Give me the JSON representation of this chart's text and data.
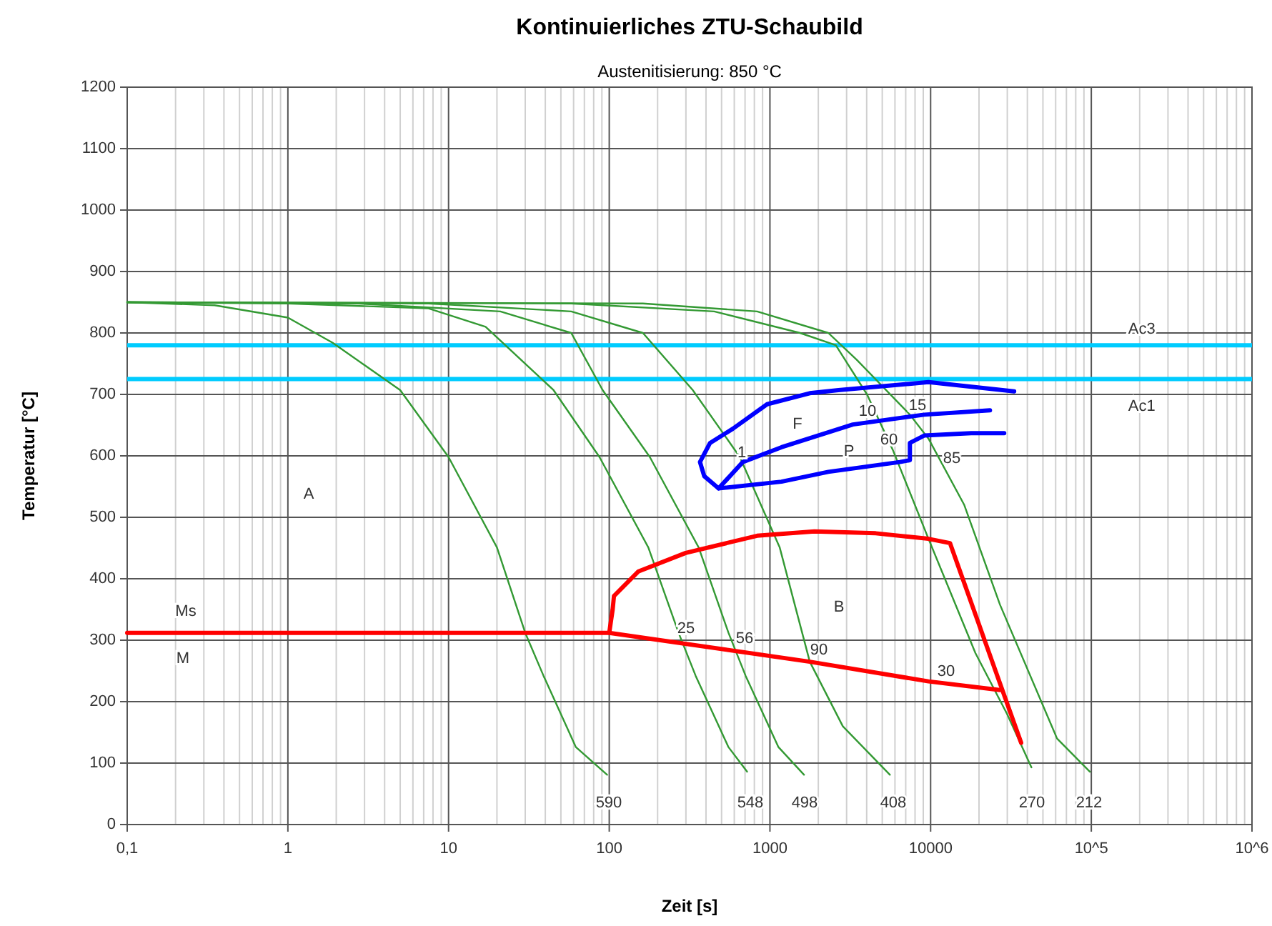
{
  "chart_data": {
    "type": "line",
    "title": "Kontinuierliches ZTU-Schaubild",
    "subtitle": "Austenitisierung: 850 °C",
    "xlabel": "Zeit [s]",
    "ylabel": "Temperatur [°C]",
    "log": "x",
    "grid": true,
    "line_style": "solid",
    "marker": "none",
    "xlim": [
      0.1,
      1000000
    ],
    "xticks": [
      {
        "value": 0.1,
        "label": "0,1"
      },
      1,
      10,
      100,
      1000,
      10000,
      {
        "value": 100000,
        "label": "10^5"
      },
      {
        "value": 1000000,
        "label": "10^6"
      }
    ],
    "ylim": [
      0,
      1200
    ],
    "yticks": [
      0,
      100,
      200,
      300,
      400,
      500,
      600,
      700,
      800,
      900,
      1000,
      1100,
      1200
    ],
    "series": [
      {
        "color": "#339933",
        "x": [
          0.1,
          0.35,
          1,
          1.9,
          5,
          10,
          20,
          30,
          39,
          62,
          97
        ],
        "values": [
          850,
          845,
          825,
          784,
          707,
          598,
          451,
          312,
          242,
          126,
          81
        ]
      },
      {
        "color": "#339933",
        "x": [
          0.1,
          1,
          7.5,
          17,
          45,
          87,
          175,
          270,
          345,
          552,
          721
        ],
        "values": [
          850,
          848,
          840,
          810,
          707,
          598,
          451,
          312,
          242,
          126,
          86
        ]
      },
      {
        "color": "#339933",
        "x": [
          0.1,
          2.7,
          21,
          58,
          91,
          179,
          360,
          552,
          706,
          1130,
          1630
        ],
        "values": [
          850,
          848,
          835,
          800,
          707,
          598,
          451,
          312,
          242,
          126,
          81
        ]
      },
      {
        "color": "#339933",
        "x": [
          0.1,
          7.5,
          58,
          162,
          331,
          650,
          1150,
          1770,
          2840,
          5580
        ],
        "values": [
          850,
          848,
          835,
          800,
          707,
          598,
          451,
          265,
          160,
          81
        ]
      },
      {
        "color": "#339933",
        "x": [
          0.1,
          58,
          450,
          1540,
          2570,
          4020,
          5810,
          9700,
          19000,
          29900,
          42400
        ],
        "values": [
          850,
          848,
          835,
          800,
          780,
          700,
          610,
          465,
          279,
          180,
          93
        ]
      },
      {
        "color": "#339933",
        "x": [
          0.1,
          162,
          832,
          2310,
          3480,
          7430,
          9700,
          16200,
          27000,
          61200,
          98000
        ],
        "values": [
          850,
          848,
          835,
          800,
          756,
          667,
          628,
          520,
          358,
          140,
          86
        ]
      },
      {
        "color": "#ff0000",
        "x": [
          0.1,
          100,
          1770,
          9700,
          27000
        ],
        "values": [
          312,
          312,
          265,
          233,
          219
        ]
      },
      {
        "color": "#ff0000",
        "x": [
          100,
          105,
          107,
          152,
          299,
          832,
          1890,
          4550,
          9700,
          13200,
          27000,
          36600
        ],
        "values": [
          312,
          350,
          372,
          412,
          442,
          470,
          477,
          474,
          465,
          458,
          230,
          133
        ]
      },
      {
        "color": "#0000ff",
        "x": [
          33100,
          9700,
          2670,
          1770,
          960,
          587,
          424,
          367,
          390,
          479,
          1180,
          2310,
          6440,
          7430,
          7430,
          9120,
          17900,
          28700
        ],
        "values": [
          705,
          720,
          707,
          702,
          684,
          644,
          621,
          590,
          567,
          547,
          558,
          574,
          590,
          593,
          621,
          633,
          637,
          637
        ]
      },
      {
        "color": "#0000ff",
        "x": [
          479,
          678,
          1180,
          3280,
          9120,
          23400
        ],
        "values": [
          547,
          590,
          614,
          651,
          667,
          674
        ]
      }
    ],
    "ref_lines": [
      {
        "axis": "y",
        "value": 780,
        "label": "Ac3",
        "color": "#00ccff"
      },
      {
        "axis": "y",
        "value": 725,
        "label": "Ac1",
        "color": "#00ccff"
      }
    ],
    "annotations": [
      "A",
      "Ms",
      "M",
      "F",
      "P",
      "B",
      "1",
      "10",
      "15",
      "60",
      "85",
      "25",
      "56",
      "90",
      "30",
      "590",
      "548",
      "498",
      "408",
      "270",
      "212"
    ]
  }
}
